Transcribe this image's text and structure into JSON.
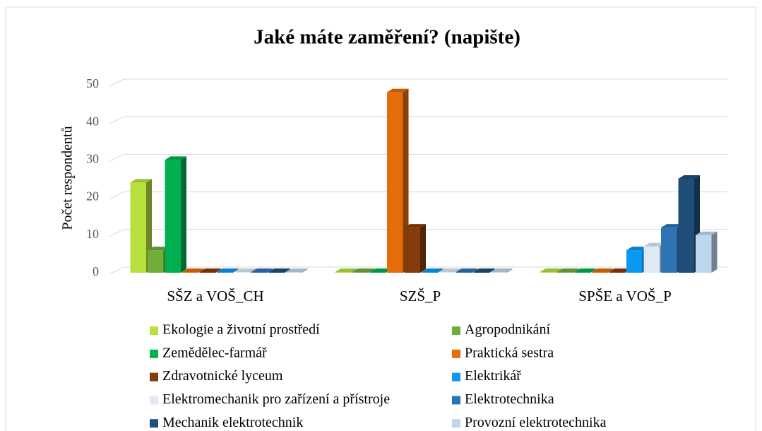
{
  "chart_data": {
    "type": "bar3d",
    "title": "Jaké máte zaměření? (napište)",
    "y_label": "Počet respondentů",
    "categories": [
      "SŠZ a VOŠ_CH",
      "SZŠ_P",
      "SPŠE a VOŠ_P"
    ],
    "ylim": [
      0,
      50
    ],
    "yticks": [
      0,
      10,
      20,
      30,
      40,
      50
    ],
    "grid": true,
    "legend": "bottom",
    "series": [
      {
        "name": "Ekologie a životní prostředí",
        "color": "#b8e03c",
        "values": [
          24,
          0,
          0
        ]
      },
      {
        "name": "Agropodnikání",
        "color": "#72ac3a",
        "values": [
          6,
          0,
          0
        ]
      },
      {
        "name": "Zemědělec-farmář",
        "color": "#00b050",
        "values": [
          30,
          0,
          0
        ]
      },
      {
        "name": "Praktická sestra",
        "color": "#e46c0a",
        "values": [
          0,
          48,
          0
        ]
      },
      {
        "name": "Zdravotnické lyceum",
        "color": "#843c0c",
        "values": [
          0,
          12,
          0
        ]
      },
      {
        "name": "Elektrikář",
        "color": "#0a98f0",
        "values": [
          0,
          0,
          6
        ]
      },
      {
        "name": "Elektromechanik pro zařízení a přístroje",
        "color": "#dfe9f5",
        "values": [
          0,
          0,
          7
        ]
      },
      {
        "name": "Elektrotechnika",
        "color": "#2e74b5",
        "values": [
          0,
          0,
          12
        ]
      },
      {
        "name": "Mechanik elektrotechnik",
        "color": "#1f4e79",
        "values": [
          0,
          0,
          25
        ]
      },
      {
        "name": "Provozní elektrotechnika",
        "color": "#bdd7ee",
        "values": [
          0,
          0,
          10
        ]
      }
    ]
  }
}
